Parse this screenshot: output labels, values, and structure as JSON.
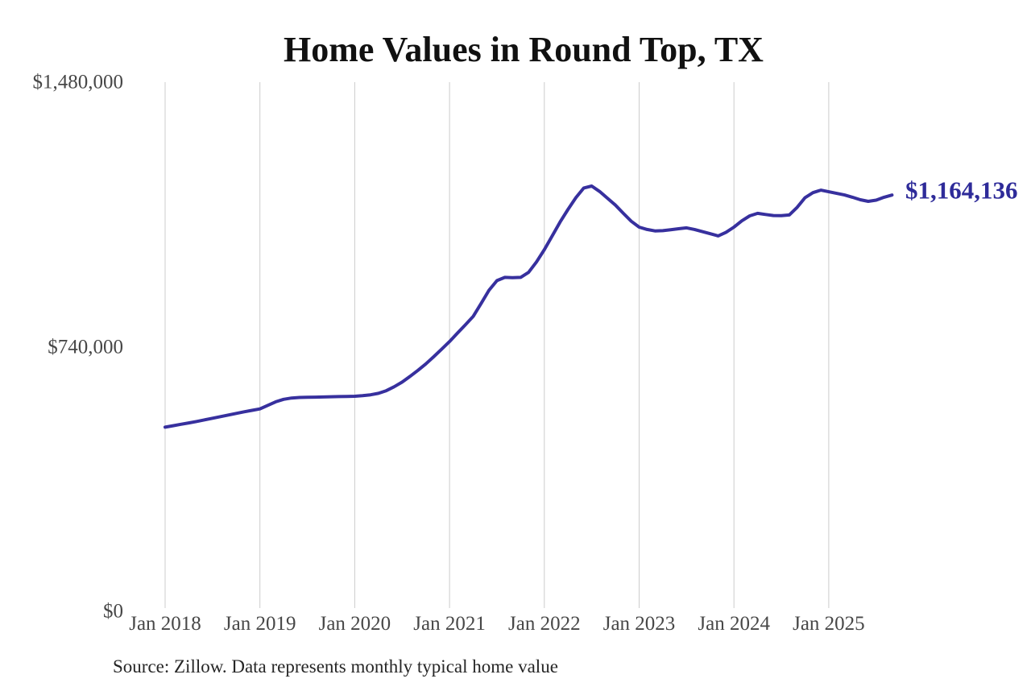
{
  "title": "Home Values in Round Top, TX",
  "source_note": "Source: Zillow. Data represents monthly typical home value",
  "colors": {
    "line": "#37309e",
    "end_label": "#2e2b99",
    "grid": "#cccccc",
    "tick_text": "#474747",
    "title_text": "#111111",
    "source_text": "#262626",
    "background": "#ffffff"
  },
  "chart_data": {
    "type": "line",
    "title": "Home Values in Round Top, TX",
    "series_name": "Monthly typical home value",
    "last_value_label": "$1,164,136",
    "last_value": 1164136,
    "ylim": [
      0,
      1480000
    ],
    "grid": "vertical-only",
    "legend": "none",
    "x": [
      "2018-01",
      "2018-02",
      "2018-03",
      "2018-04",
      "2018-05",
      "2018-06",
      "2018-07",
      "2018-08",
      "2018-09",
      "2018-10",
      "2018-11",
      "2018-12",
      "2019-01",
      "2019-02",
      "2019-03",
      "2019-04",
      "2019-05",
      "2019-06",
      "2019-07",
      "2019-08",
      "2019-09",
      "2019-10",
      "2019-11",
      "2019-12",
      "2020-01",
      "2020-02",
      "2020-03",
      "2020-04",
      "2020-05",
      "2020-06",
      "2020-07",
      "2020-08",
      "2020-09",
      "2020-10",
      "2020-11",
      "2020-12",
      "2021-01",
      "2021-02",
      "2021-03",
      "2021-04",
      "2021-05",
      "2021-06",
      "2021-07",
      "2021-08",
      "2021-09",
      "2021-10",
      "2021-11",
      "2021-12",
      "2022-01",
      "2022-02",
      "2022-03",
      "2022-04",
      "2022-05",
      "2022-06",
      "2022-07",
      "2022-08",
      "2022-09",
      "2022-10",
      "2022-11",
      "2022-12",
      "2023-01",
      "2023-02",
      "2023-03",
      "2023-04",
      "2023-05",
      "2023-06",
      "2023-07",
      "2023-08",
      "2023-09",
      "2023-10",
      "2023-11",
      "2023-12",
      "2024-01",
      "2024-02",
      "2024-03",
      "2024-04",
      "2024-05",
      "2024-06",
      "2024-07",
      "2024-08",
      "2024-09",
      "2024-10",
      "2024-11",
      "2024-12",
      "2025-01",
      "2025-02",
      "2025-03",
      "2025-04",
      "2025-05",
      "2025-06",
      "2025-07",
      "2025-08",
      "2025-09"
    ],
    "values": [
      515000,
      519000,
      523000,
      527000,
      531000,
      535500,
      540000,
      544500,
      549000,
      553500,
      558000,
      562000,
      566000,
      576000,
      586000,
      593000,
      596500,
      598000,
      598500,
      599000,
      599500,
      600000,
      600500,
      601000,
      601500,
      603000,
      605500,
      609500,
      617000,
      628000,
      641000,
      657000,
      674000,
      692000,
      712000,
      733000,
      754500,
      778000,
      801000,
      825000,
      861000,
      898000,
      925000,
      934000,
      933000,
      934000,
      948000,
      977000,
      1011500,
      1050000,
      1089000,
      1124000,
      1157000,
      1184000,
      1189500,
      1174000,
      1155000,
      1136000,
      1113000,
      1091000,
      1074500,
      1068000,
      1064000,
      1064500,
      1067000,
      1070000,
      1072500,
      1068000,
      1062000,
      1056000,
      1050000,
      1060000,
      1074500,
      1092000,
      1106000,
      1113000,
      1110000,
      1107000,
      1106500,
      1108500,
      1130000,
      1157000,
      1171000,
      1178000,
      1173500,
      1169000,
      1164500,
      1158000,
      1151000,
      1146500,
      1150000,
      1158000,
      1164136
    ],
    "x_ticks": [
      {
        "label": "Jan 2018",
        "month_index": 0
      },
      {
        "label": "Jan 2019",
        "month_index": 12
      },
      {
        "label": "Jan 2020",
        "month_index": 24
      },
      {
        "label": "Jan 2021",
        "month_index": 36
      },
      {
        "label": "Jan 2022",
        "month_index": 48
      },
      {
        "label": "Jan 2023",
        "month_index": 60
      },
      {
        "label": "Jan 2024",
        "month_index": 72
      },
      {
        "label": "Jan 2025",
        "month_index": 84
      }
    ],
    "y_ticks": [
      {
        "label": "$0",
        "value": 0
      },
      {
        "label": "$740,000",
        "value": 740000
      },
      {
        "label": "$1,480,000",
        "value": 1480000
      }
    ]
  }
}
